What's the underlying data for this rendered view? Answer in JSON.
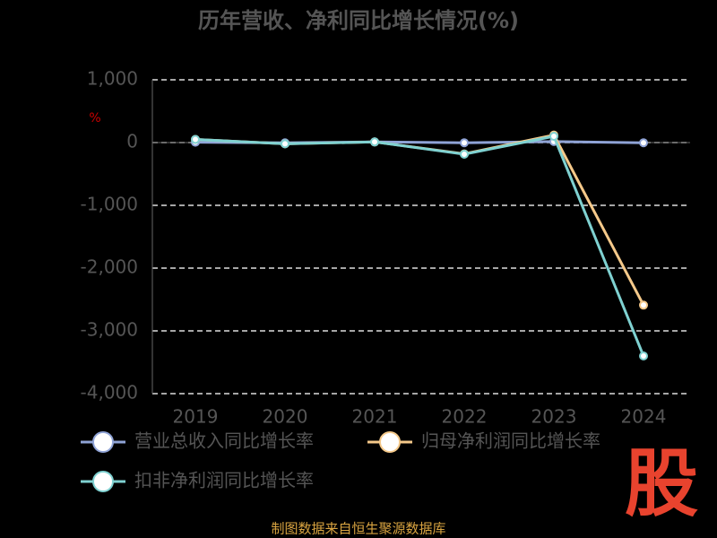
{
  "chart_data": {
    "type": "line",
    "title": "历年营收、净利同比增长情况(%)",
    "y_label": "%",
    "categories": [
      "2019",
      "2020",
      "2021",
      "2022",
      "2023",
      "2024"
    ],
    "series": [
      {
        "name": "营业总收入同比增长率",
        "color": "#8fa3d6",
        "values": [
          5,
          -4,
          10,
          -3,
          16,
          -3
        ]
      },
      {
        "name": "归母净利润同比增长率",
        "color": "#f5c98a",
        "values": [
          50,
          -20,
          10,
          -180,
          120,
          -2590
        ]
      },
      {
        "name": "扣非净利润同比增长率",
        "color": "#7fd1d1",
        "values": [
          50,
          -20,
          10,
          -186,
          100,
          -3400
        ]
      }
    ],
    "ylim": [
      -4000,
      1000
    ],
    "yticks": [
      {
        "value": 1000,
        "label": "1,000"
      },
      0,
      {
        "value": -1000,
        "label": "-1,000"
      },
      {
        "value": -2000,
        "label": "-2,000"
      },
      {
        "value": -3000,
        "label": "-3,000"
      },
      {
        "value": -4000,
        "label": "-4,000"
      }
    ],
    "grid": true,
    "source": "制图数据来自恒生聚源数据库",
    "logo": "股"
  }
}
